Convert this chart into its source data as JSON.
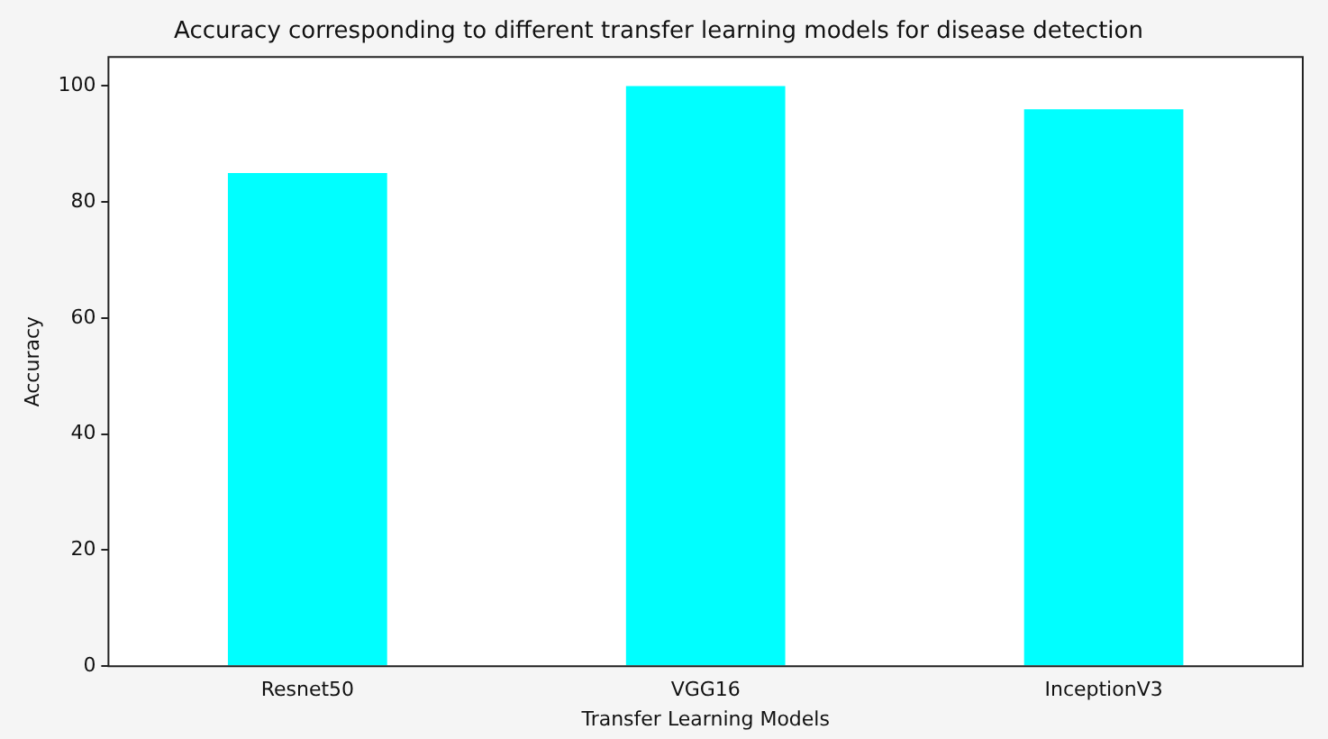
{
  "chart_data": {
    "type": "bar",
    "title": "Accuracy corresponding to different transfer learning models for disease detection",
    "xlabel": "Transfer Learning Models",
    "ylabel": "Accuracy",
    "categories": [
      "Resnet50",
      "VGG16",
      "InceptionV3"
    ],
    "values": [
      85,
      100,
      96
    ],
    "color": "#00ffff",
    "ylim": [
      0,
      105
    ],
    "yticks": [
      0,
      20,
      40,
      60,
      80,
      100
    ],
    "grid": false,
    "legend": false
  }
}
